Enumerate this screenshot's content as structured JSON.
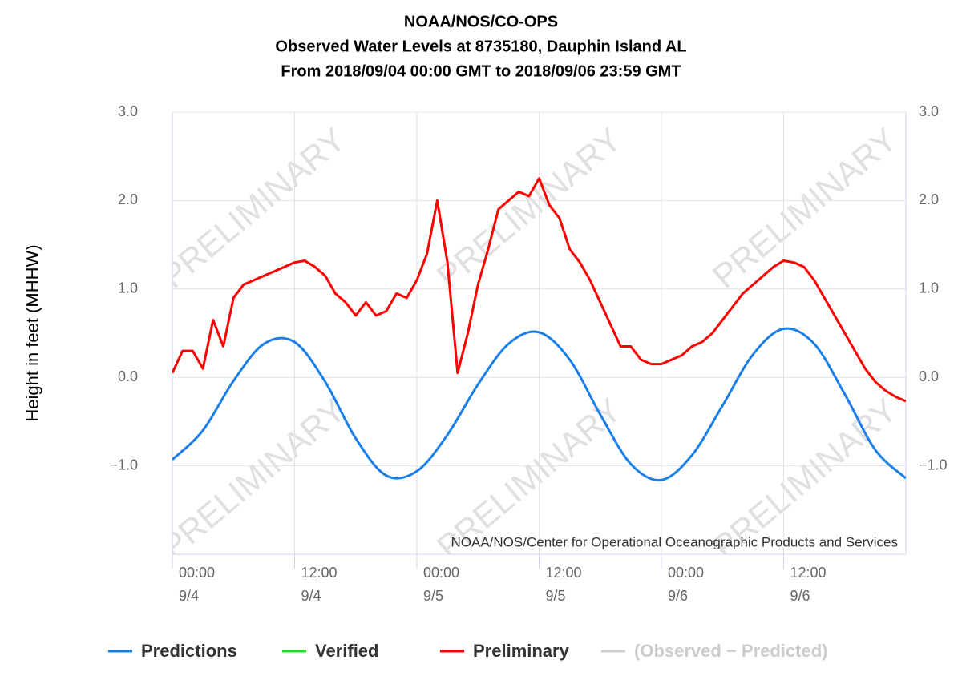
{
  "chart_data": {
    "type": "line",
    "title": [
      "NOAA/NOS/CO-OPS",
      "Observed Water Levels at 8735180, Dauphin Island AL",
      "From 2018/09/04 00:00 GMT to 2018/09/06 23:59 GMT"
    ],
    "ylabel": "Height in feet (MHHW)",
    "credit": "NOAA/NOS/Center for Operational Oceanographic Products and Services",
    "watermark": "PRELIMINARY",
    "xlim": [
      0,
      72
    ],
    "xticks": [
      {
        "value": 0,
        "label": [
          "00:00",
          "9/4"
        ]
      },
      {
        "value": 12,
        "label": [
          "12:00",
          "9/4"
        ]
      },
      {
        "value": 24,
        "label": [
          "00:00",
          "9/5"
        ]
      },
      {
        "value": 36,
        "label": [
          "12:00",
          "9/5"
        ]
      },
      {
        "value": 48,
        "label": [
          "00:00",
          "9/6"
        ]
      },
      {
        "value": 60,
        "label": [
          "12:00",
          "9/6"
        ]
      }
    ],
    "ylim": [
      -2,
      3
    ],
    "yticks": [
      {
        "value": 3,
        "label": "3.0"
      },
      {
        "value": 2,
        "label": "2.0"
      },
      {
        "value": 1,
        "label": "1.0"
      },
      {
        "value": 0,
        "label": "0.0"
      },
      {
        "value": -1,
        "label": "−1.0"
      }
    ],
    "grid": true,
    "series": [
      {
        "name": "Predictions",
        "color": "#1a7fe6",
        "x": [
          0,
          3,
          6,
          9,
          12,
          15,
          18,
          21,
          24,
          27,
          30,
          33,
          36,
          39,
          42,
          45,
          48,
          51,
          54,
          57,
          60,
          63,
          66,
          69,
          72
        ],
        "values": [
          -0.93,
          -0.6,
          -0.04,
          0.38,
          0.4,
          -0.05,
          -0.69,
          -1.11,
          -1.06,
          -0.65,
          -0.08,
          0.38,
          0.51,
          0.2,
          -0.42,
          -0.98,
          -1.16,
          -0.88,
          -0.32,
          0.26,
          0.55,
          0.38,
          -0.19,
          -0.82,
          -1.14
        ]
      },
      {
        "name": "Verified",
        "color": "#22dd22"
      },
      {
        "name": "Preliminary",
        "color": "#ff0000",
        "x": [
          0,
          1,
          2,
          3,
          4,
          5,
          6,
          7,
          8,
          9,
          10,
          11,
          12,
          13,
          14,
          15,
          16,
          17,
          18,
          19,
          20,
          21,
          22,
          23,
          24,
          25,
          26,
          27,
          28,
          29,
          30,
          31,
          32,
          33,
          34,
          35,
          36,
          37,
          38,
          39,
          40,
          41,
          42,
          43,
          44,
          45,
          46,
          47,
          48,
          49,
          50,
          51,
          52,
          53,
          54,
          55,
          56,
          57,
          58,
          59,
          60,
          61,
          62,
          63,
          64,
          65,
          66,
          67,
          68,
          69,
          70,
          71,
          72
        ],
        "values": [
          0.05,
          0.3,
          0.3,
          0.1,
          0.65,
          0.35,
          0.9,
          1.05,
          1.1,
          1.15,
          1.2,
          1.25,
          1.3,
          1.32,
          1.25,
          1.15,
          0.95,
          0.85,
          0.7,
          0.85,
          0.7,
          0.75,
          0.95,
          0.9,
          1.1,
          1.4,
          2.0,
          1.3,
          0.05,
          0.5,
          1.05,
          1.45,
          1.9,
          2.0,
          2.1,
          2.05,
          2.25,
          1.95,
          1.8,
          1.45,
          1.3,
          1.1,
          0.85,
          0.6,
          0.35,
          0.35,
          0.2,
          0.15,
          0.15,
          0.2,
          0.25,
          0.35,
          0.4,
          0.5,
          0.65,
          0.8,
          0.95,
          1.05,
          1.15,
          1.25,
          1.32,
          1.3,
          1.25,
          1.1,
          0.9,
          0.7,
          0.5,
          0.3,
          0.1,
          -0.05,
          -0.15,
          -0.22,
          -0.27
        ]
      },
      {
        "name": "(Observed − Predicted)",
        "color": "#cccccc",
        "disabled": true
      }
    ]
  }
}
